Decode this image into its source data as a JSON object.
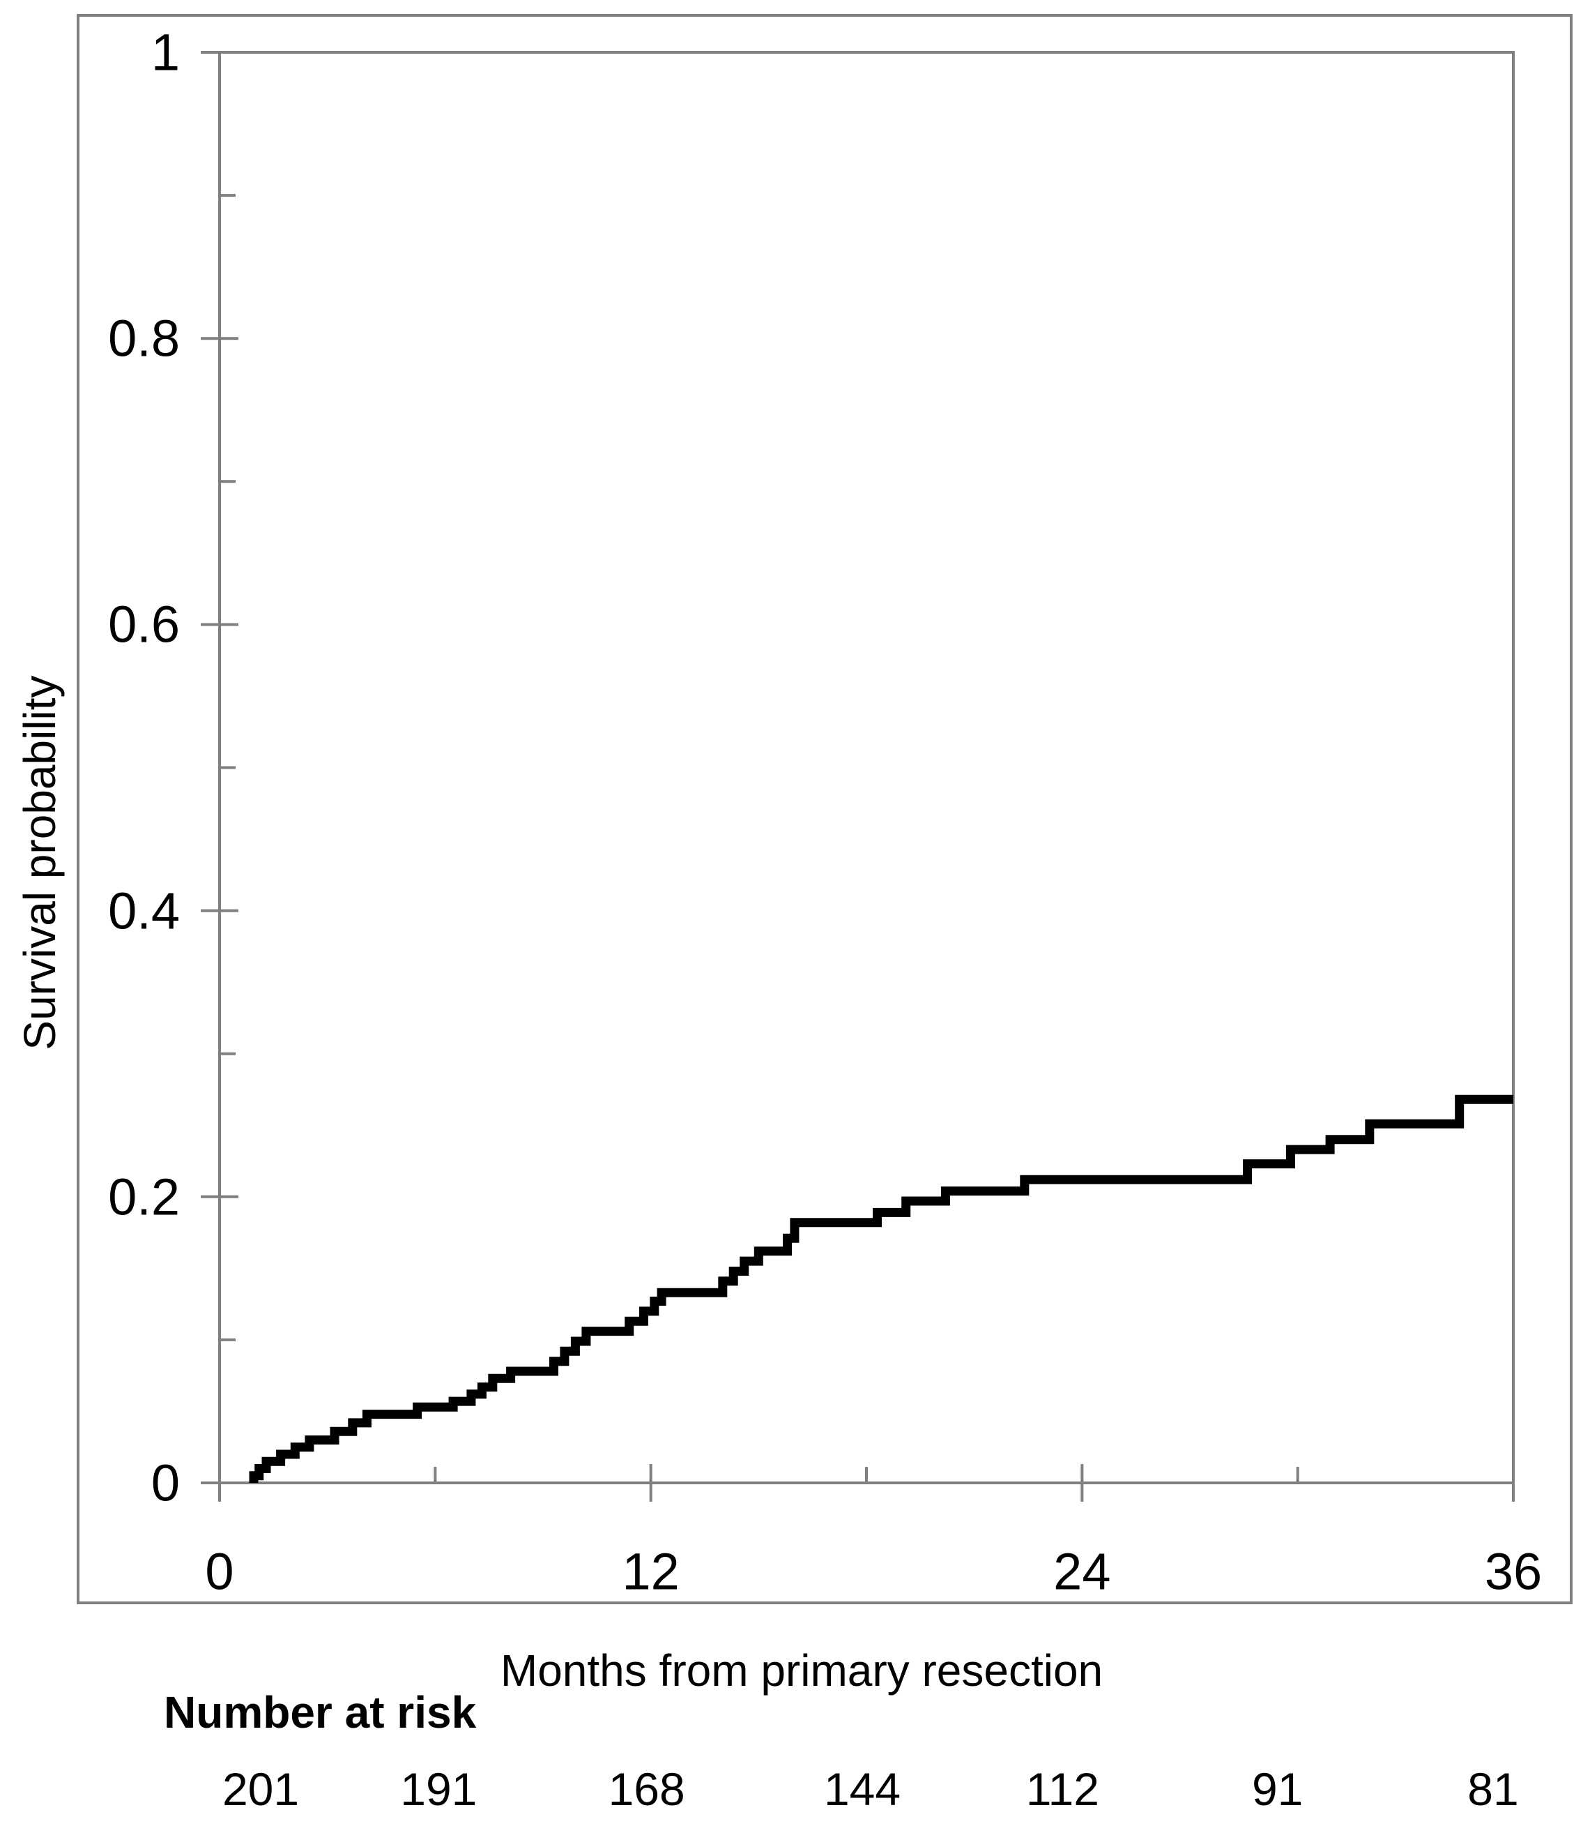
{
  "chart_data": {
    "type": "line",
    "subtype": "kaplan-meier-step-curve",
    "title": "",
    "xlabel": "Months from primary resection",
    "ylabel": "Survival probability",
    "xlim": [
      0,
      36
    ],
    "ylim": [
      0,
      1
    ],
    "grid": false,
    "legend_position": "none",
    "x_major_ticks": [
      0,
      12,
      24,
      36
    ],
    "x_major_tick_labels": [
      "0",
      "12",
      "24",
      "36"
    ],
    "x_minor_ticks": [
      6,
      18,
      30
    ],
    "y_major_ticks": [
      0,
      0.2,
      0.4,
      0.6,
      0.8,
      1
    ],
    "y_major_tick_labels": [
      "0",
      "0.2",
      "0.4",
      "0.6",
      "0.8",
      "1"
    ],
    "y_minor_ticks": [
      0.1,
      0.3,
      0.5,
      0.7,
      0.9
    ],
    "axis_color": "#7f7f7f",
    "curve_color": "#000000",
    "series": [
      {
        "name": "Survival probability",
        "color": "#000000",
        "start": [
          0.95,
          0
        ],
        "steps": [
          [
            0.95,
            0.005
          ],
          [
            1.1,
            0.01
          ],
          [
            1.3,
            0.015
          ],
          [
            1.7,
            0.02
          ],
          [
            2.1,
            0.025
          ],
          [
            2.5,
            0.03
          ],
          [
            3.2,
            0.036
          ],
          [
            3.7,
            0.042
          ],
          [
            4.1,
            0.048
          ],
          [
            5.5,
            0.053
          ],
          [
            6.5,
            0.057
          ],
          [
            7.0,
            0.062
          ],
          [
            7.3,
            0.067
          ],
          [
            7.6,
            0.073
          ],
          [
            8.1,
            0.078
          ],
          [
            9.3,
            0.085
          ],
          [
            9.6,
            0.092
          ],
          [
            9.9,
            0.099
          ],
          [
            10.2,
            0.106
          ],
          [
            11.4,
            0.113
          ],
          [
            11.8,
            0.12
          ],
          [
            12.1,
            0.127
          ],
          [
            12.3,
            0.133
          ],
          [
            14.0,
            0.141
          ],
          [
            14.3,
            0.148
          ],
          [
            14.6,
            0.155
          ],
          [
            15.0,
            0.162
          ],
          [
            15.8,
            0.171
          ],
          [
            16.0,
            0.182
          ],
          [
            18.3,
            0.189
          ],
          [
            19.1,
            0.197
          ],
          [
            20.2,
            0.204
          ],
          [
            22.4,
            0.212
          ],
          [
            28.6,
            0.223
          ],
          [
            29.8,
            0.233
          ],
          [
            30.9,
            0.24
          ],
          [
            32.0,
            0.251
          ],
          [
            34.5,
            0.268
          ]
        ],
        "end_x": 36,
        "final_value": 0.268
      }
    ],
    "number_at_risk": {
      "label": "Number at risk",
      "months": [
        0,
        6,
        12,
        18,
        24,
        30,
        36
      ],
      "values": [
        "201",
        "191",
        "168",
        "144",
        "112",
        "91",
        "81"
      ]
    }
  }
}
